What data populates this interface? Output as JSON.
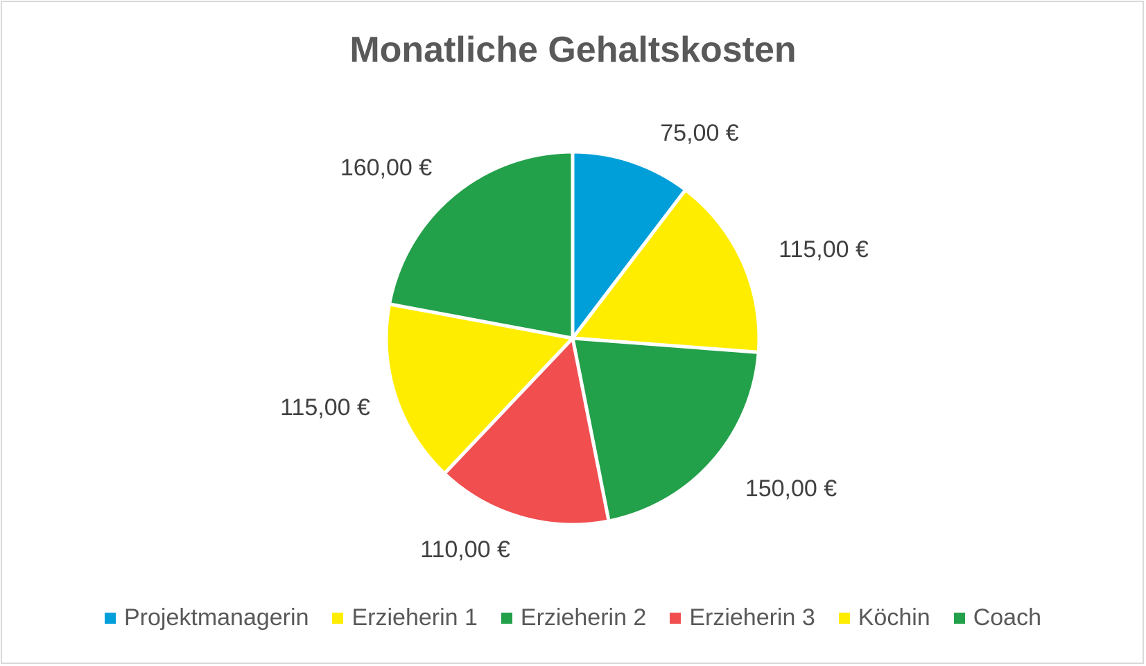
{
  "chart_data": {
    "type": "pie",
    "title": "Monatliche Gehaltskosten",
    "categories": [
      "Projektmanagerin",
      "Erzieherin 1",
      "Erzieherin 2",
      "Erzieherin 3",
      "Köchin",
      "Coach"
    ],
    "values": [
      75,
      115,
      150,
      110,
      115,
      160
    ],
    "data_labels": [
      "75,00 €",
      "115,00 €",
      "150,00 €",
      "110,00 €",
      "115,00 €",
      "160,00 €"
    ],
    "colors": [
      "#009FD9",
      "#FFED00",
      "#23A04A",
      "#F04E4F",
      "#FFED00",
      "#23A04A"
    ],
    "legend_position": "bottom"
  }
}
